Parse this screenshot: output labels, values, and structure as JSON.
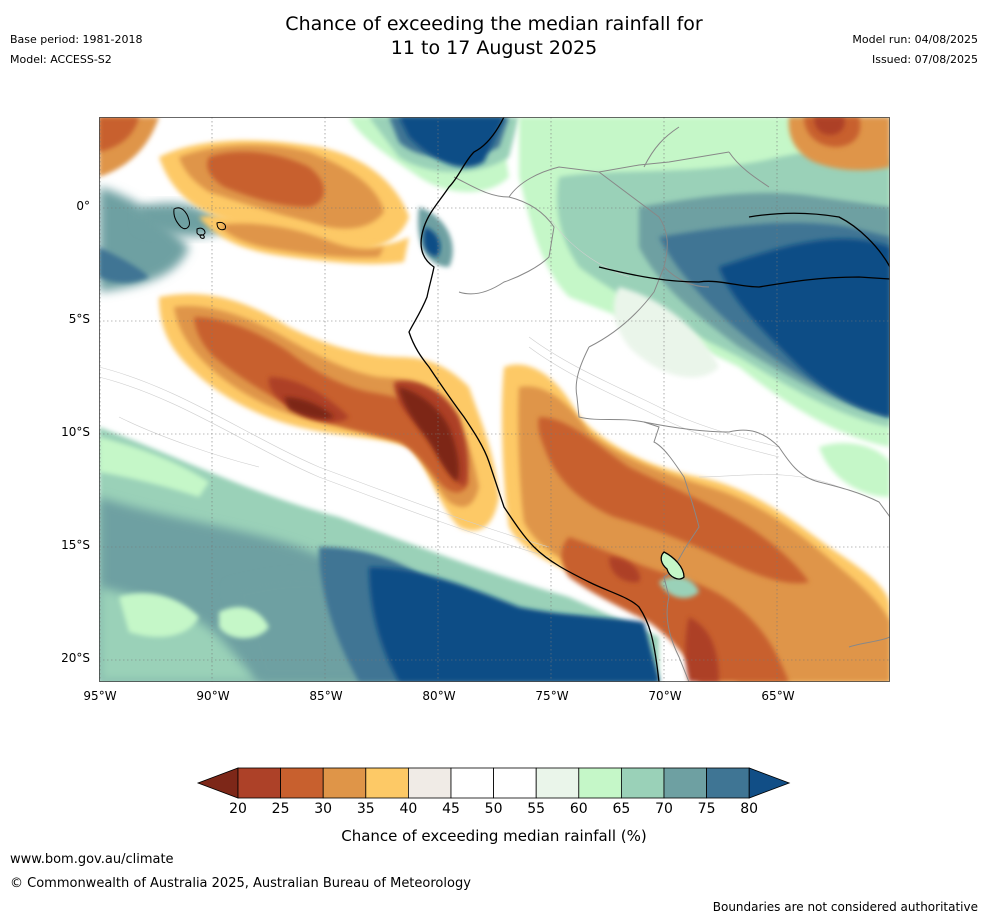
{
  "header": {
    "title_line1": "Chance of exceeding the median rainfall for",
    "title_line2": "11 to 17 August 2025",
    "base_period": "Base period: 1981-2018",
    "model": "Model: ACCESS-S2",
    "model_run": "Model run: 04/08/2025",
    "issued": "Issued: 07/08/2025"
  },
  "map": {
    "lat_labels": [
      "0°",
      "5°S",
      "10°S",
      "15°S",
      "20°S"
    ],
    "lon_labels": [
      "95°W",
      "90°W",
      "85°W",
      "80°W",
      "75°W",
      "70°W",
      "65°W"
    ],
    "region": "Western South America (Ecuador, Peru, Galapagos)"
  },
  "colorbar": {
    "label": "Chance of exceeding median rainfall (%)",
    "ticks": [
      "20",
      "25",
      "30",
      "35",
      "40",
      "45",
      "50",
      "55",
      "60",
      "65",
      "70",
      "75",
      "80"
    ],
    "colors": [
      "#7d2718",
      "#ad4128",
      "#c8602e",
      "#df9548",
      "#fdc966",
      "#f0ebe6",
      "#ffffff",
      "#ffffff",
      "#eaf5ea",
      "#c5f7c8",
      "#9ad1b8",
      "#6ea0a2",
      "#3f7594",
      "#114e86"
    ]
  },
  "footer": {
    "url": "www.bom.gov.au/climate",
    "copyright": "© Commonwealth of Australia 2025, Australian Bureau of Meteorology",
    "disclaimer": "Boundaries are not considered authoritative"
  }
}
